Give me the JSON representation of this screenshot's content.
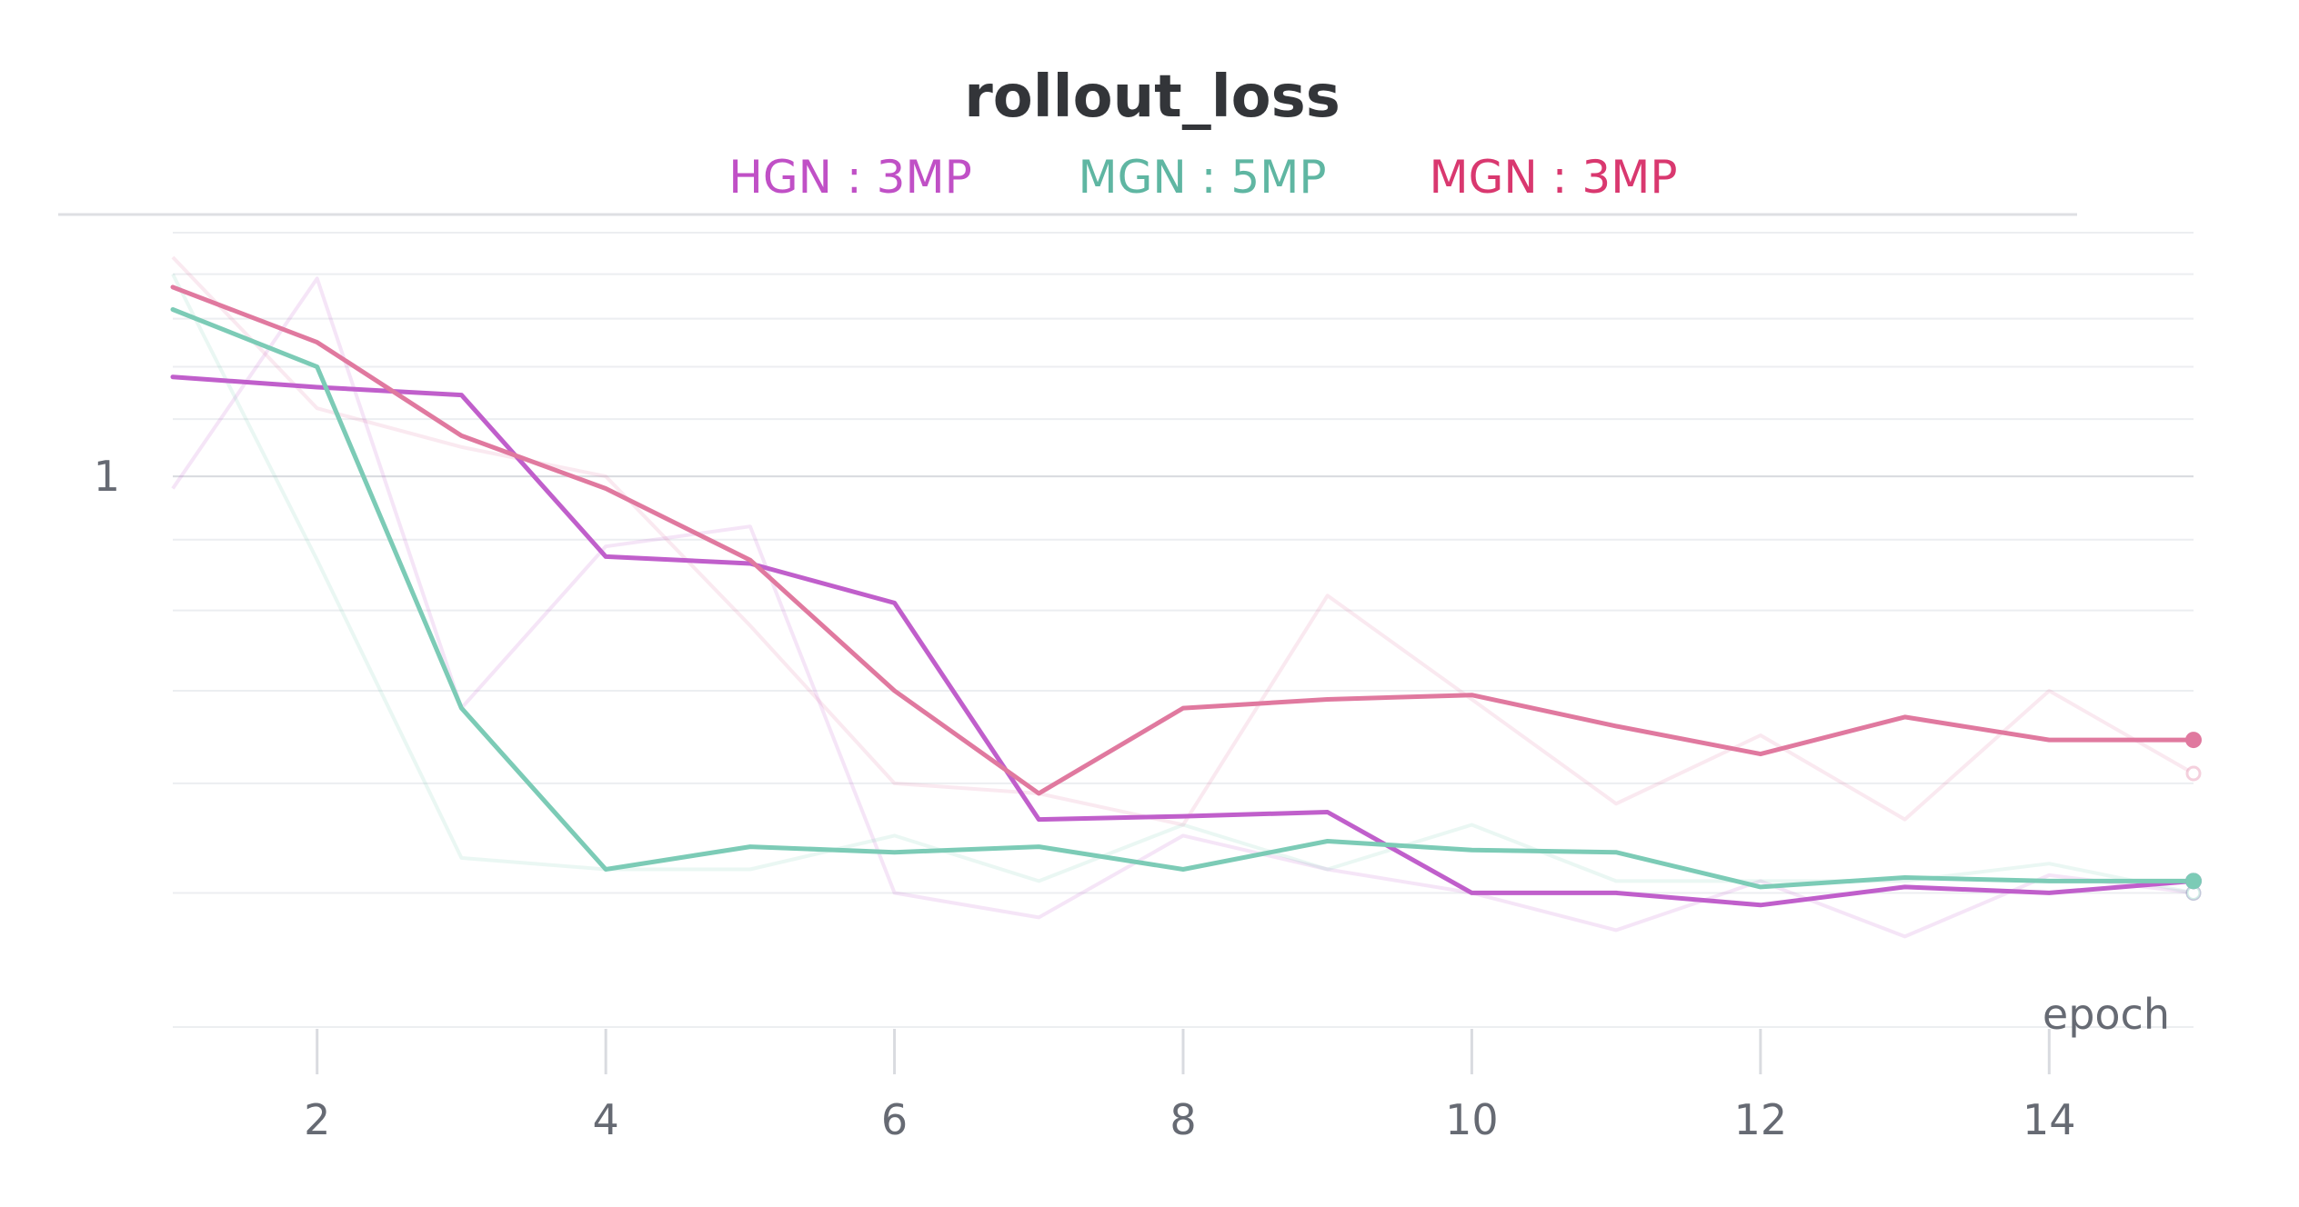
{
  "chart_data": {
    "type": "line",
    "title": "rollout_loss",
    "xlabel": "epoch",
    "ylabel": "",
    "y_scale": "log",
    "xlim": [
      1,
      15
    ],
    "ylim": [
      0.4,
      1.5
    ],
    "x_ticks": [
      2,
      4,
      6,
      8,
      10,
      12,
      14
    ],
    "y_ticks": [
      {
        "value": 1,
        "label": "1"
      }
    ],
    "grid": true,
    "legend_position": "top",
    "x": [
      1,
      2,
      3,
      4,
      5,
      6,
      7,
      8,
      9,
      10,
      11,
      12,
      13,
      14,
      15
    ],
    "series": [
      {
        "name": "HGN : 3MP",
        "color": "#c05fcb",
        "values": [
          1.18,
          1.16,
          1.145,
          0.875,
          0.865,
          0.81,
          0.565,
          0.568,
          0.572,
          0.5,
          0.5,
          0.49,
          0.505,
          0.5,
          0.51
        ],
        "raw_values": [
          0.98,
          1.39,
          0.68,
          0.89,
          0.92,
          0.5,
          0.48,
          0.55,
          0.52,
          0.5,
          0.47,
          0.51,
          0.465,
          0.515,
          0.5
        ]
      },
      {
        "name": "MGN : 5MP",
        "color": "#7ccbb6",
        "values": [
          1.32,
          1.2,
          0.68,
          0.52,
          0.54,
          0.535,
          0.54,
          0.52,
          0.545,
          0.537,
          0.535,
          0.505,
          0.513,
          0.51,
          0.51
        ],
        "raw_values": [
          1.4,
          0.87,
          0.53,
          0.52,
          0.52,
          0.55,
          0.51,
          0.56,
          0.52,
          0.56,
          0.51,
          0.51,
          0.51,
          0.525,
          0.5
        ]
      },
      {
        "name": "MGN : 3MP",
        "color": "#e0799f",
        "values": [
          1.37,
          1.25,
          1.07,
          0.98,
          0.87,
          0.7,
          0.59,
          0.68,
          0.69,
          0.695,
          0.66,
          0.63,
          0.67,
          0.645,
          0.645
        ],
        "raw_values": [
          1.44,
          1.12,
          1.05,
          1.0,
          0.78,
          0.6,
          0.59,
          0.56,
          0.82,
          0.69,
          0.58,
          0.65,
          0.565,
          0.7,
          0.61
        ]
      }
    ]
  },
  "legend": {
    "items": [
      {
        "label": "HGN : 3MP",
        "color": "#c050c6"
      },
      {
        "label": "MGN : 5MP",
        "color": "#5fb6a2"
      },
      {
        "label": "MGN : 3MP",
        "color": "#d9386f"
      }
    ]
  }
}
